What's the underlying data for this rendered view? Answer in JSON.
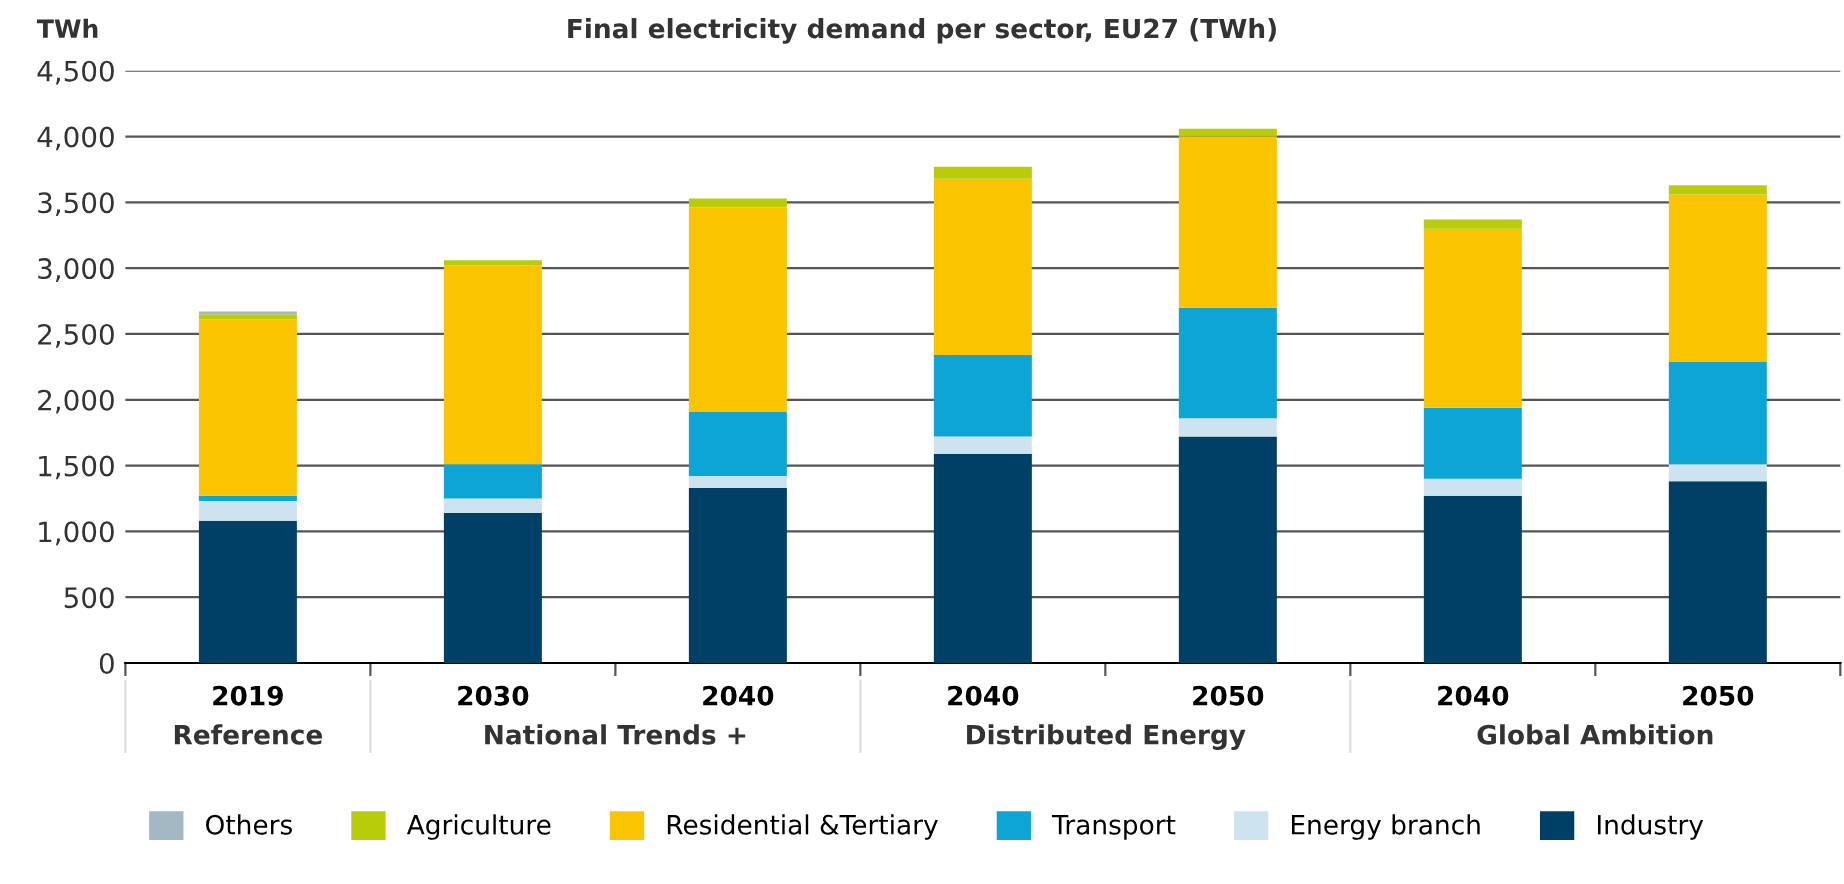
{
  "chart_data": {
    "type": "bar",
    "title": "Final electricity demand per sector, EU27 (TWh)",
    "ylabel": "TWh",
    "categories": [
      "2019",
      "2030",
      "2040",
      "2040",
      "2050",
      "2040",
      "2050"
    ],
    "annotations": [
      "Reference",
      "National Trends +",
      "Distributed Energy",
      "Global Ambition"
    ],
    "stacked": true,
    "series": [
      {
        "name": "Industry",
        "color": "#003f66",
        "values": [
          1080,
          1140,
          1330,
          1590,
          1720,
          1270,
          1380
        ]
      },
      {
        "name": "Energy branch",
        "color": "#cde3f0",
        "values": [
          150,
          110,
          90,
          130,
          140,
          130,
          130
        ]
      },
      {
        "name": "Transport",
        "color": "#0da5d6",
        "values": [
          40,
          260,
          490,
          620,
          840,
          540,
          780
        ]
      },
      {
        "name": "Residential &Tertiary",
        "color": "#fbc400",
        "values": [
          1340,
          1510,
          1550,
          1340,
          1300,
          1360,
          1270
        ]
      },
      {
        "name": "Agriculture",
        "color": "#b9cc0a",
        "values": [
          40,
          40,
          70,
          90,
          60,
          70,
          70
        ]
      },
      {
        "name": "Others",
        "color": "#a3b8c2",
        "values": [
          20,
          0,
          0,
          0,
          0,
          0,
          0
        ]
      }
    ],
    "ylim": [
      0,
      4500
    ],
    "yticks": [
      {
        "value": 0,
        "label": "0"
      },
      {
        "value": 500,
        "label": "500"
      },
      {
        "value": 1000,
        "label": "1,000"
      },
      {
        "value": 1500,
        "label": "1,500"
      },
      {
        "value": 2000,
        "label": "2,000"
      },
      {
        "value": 2500,
        "label": "2,500"
      },
      {
        "value": 3000,
        "label": "3,000"
      },
      {
        "value": 3500,
        "label": "3,500"
      },
      {
        "value": 4000,
        "label": "4,000"
      },
      {
        "value": 4500,
        "label": "4,500"
      }
    ],
    "grid": "y",
    "legend": "bottom"
  }
}
